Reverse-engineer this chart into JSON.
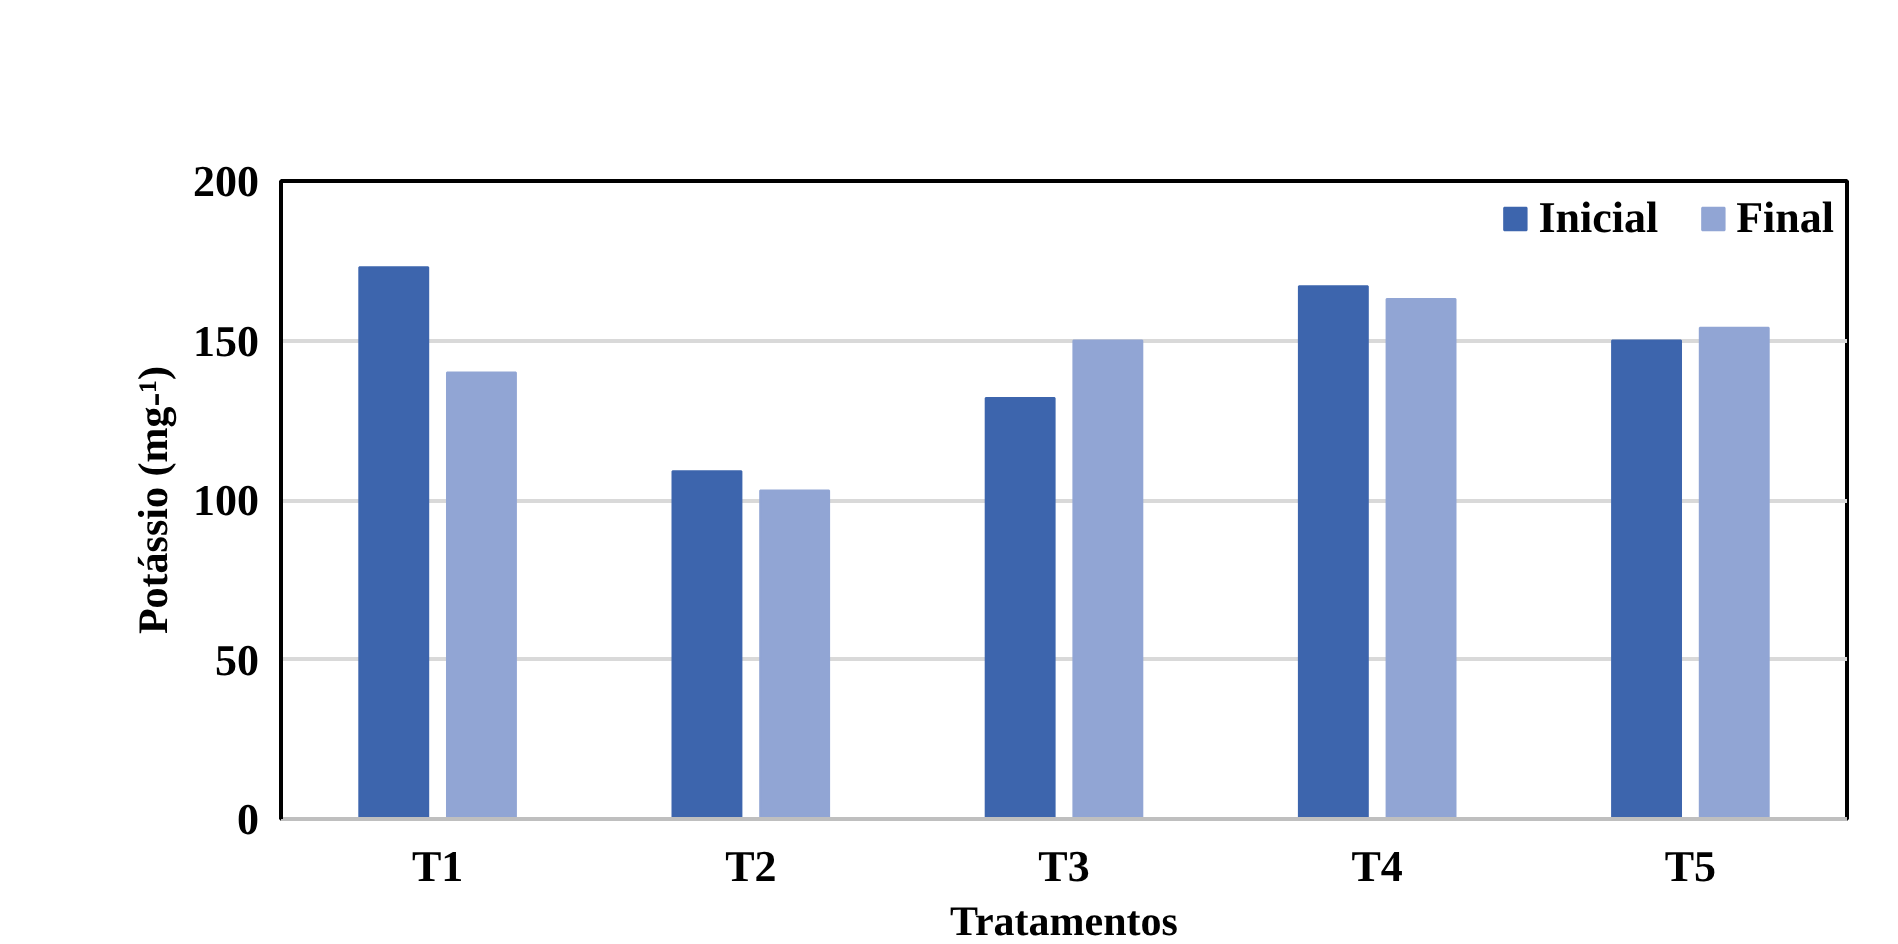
{
  "chart_data": {
    "type": "bar",
    "xlabel": "Tratamentos",
    "ylabel": "Potássio (mg-¹)",
    "categories": [
      "T1",
      "T2",
      "T3",
      "T4",
      "T5"
    ],
    "series": [
      {
        "name": "Inicial",
        "color": "#3d65ad",
        "values": [
          173,
          109,
          132,
          167,
          150
        ]
      },
      {
        "name": "Final",
        "color": "#91a5d4",
        "values": [
          140,
          103,
          150,
          163,
          154
        ]
      }
    ],
    "ylim": [
      0,
      200
    ],
    "yticks": [
      0,
      50,
      100,
      150,
      200
    ],
    "grid": "y",
    "legend": "top right"
  }
}
